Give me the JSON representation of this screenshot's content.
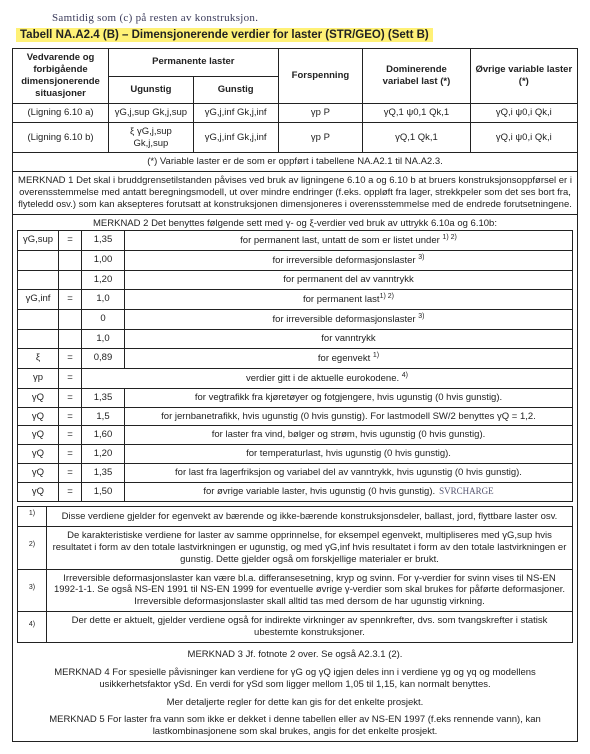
{
  "handwriting_top": "Samtidig som (c) på resten av konstruksjon.",
  "title": "Tabell NA.A2.4 (B) – Dimensjonerende verdier for laster (STR/GEO) (Sett B)",
  "header": {
    "col1": "Vedvarende og forbigående dimensjonerende situasjoner",
    "col2_top": "Permanente laster",
    "col2a": "Ugunstig",
    "col2b": "Gunstig",
    "col3": "Forspenning",
    "col4": "Dominerende variabel last (*)",
    "col5": "Øvrige variable laster (*)"
  },
  "rows": [
    {
      "c1": "(Ligning 6.10 a)",
      "c2a": "γG,j,sup Gk,j,sup",
      "c2b": "γG,j,inf Gk,j,inf",
      "c3": "γp P",
      "c4": "γQ,1 ψ0,1 Qk,1",
      "c5": "γQ,i ψ0,i Qk,i"
    },
    {
      "c1": "(Ligning 6.10 b)",
      "c2a": "ξ γG,j,sup Gk,j,sup",
      "c2b": "γG,j,inf Gk,j,inf",
      "c3": "γp P",
      "c4": "γQ,1 Qk,1",
      "c5": "γQ,i ψ0,i Qk,i"
    }
  ],
  "star_note": "(*) Variable laster er de som er oppført i tabellene NA.A2.1 til NA.A2.3.",
  "merknad1": "MERKNAD 1 Det skal i bruddgrensetilstanden påvises ved bruk av ligningene 6.10 a og 6.10 b at bruers konstruksjonsoppførsel er i overensstemmelse med antatt beregningsmodell, ut over mindre endringer (f.eks. oppløft fra lager, strekkpeler som det ses bort fra, flyteledd osv.) som kan aksepteres forutsatt at konstruksjonen dimensjoneres i overensstemmelse med de endrede forutsetningene.",
  "merknad2_intro": "MERKNAD 2  Det benyttes følgende sett med γ- og ξ-verdier ved bruk av uttrykk 6.10a og 6.10b:",
  "defs": [
    {
      "sym": "γG,sup",
      "val": "1,35",
      "txt": "for permanent last, untatt de som er listet under ",
      "sup": "1) 2)"
    },
    {
      "sym": "",
      "val": "1,00",
      "txt": "for irreversible deformasjonslaster ",
      "sup": "3)"
    },
    {
      "sym": "",
      "val": "1,20",
      "txt": "for permanent del av vanntrykk",
      "sup": ""
    },
    {
      "sym": "γG,inf",
      "val": "1,0",
      "txt": "for permanent last",
      "sup": "1) 2)"
    },
    {
      "sym": "",
      "val": "0",
      "txt": "for irreversible deformasjonslaster ",
      "sup": "3)"
    },
    {
      "sym": "",
      "val": "1,0",
      "txt": "for vanntrykk",
      "sup": ""
    },
    {
      "sym": "ξ",
      "val": "0,89",
      "txt": "for egenvekt ",
      "sup": "1)"
    },
    {
      "sym": "γp",
      "val": "verdier gitt i de aktuelle eurokodene. ",
      "txt": "",
      "sup": "4)"
    },
    {
      "sym": "γQ",
      "val": "1,35",
      "txt": "for vegtrafikk fra kjøretøyer og fotgjengere, hvis ugunstig (0 hvis gunstig).",
      "sup": ""
    },
    {
      "sym": "γQ",
      "val": "1,5",
      "txt": "for jernbanetrafikk, hvis ugunstig (0 hvis gunstig). For lastmodell SW/2 benyttes γQ = 1,2.",
      "sup": ""
    },
    {
      "sym": "γQ",
      "val": "1,60",
      "txt": "for laster fra vind, bølger og strøm, hvis ugunstig (0 hvis gunstig).",
      "sup": ""
    },
    {
      "sym": "γQ",
      "val": "1,20",
      "txt": "for temperaturlast, hvis ugunstig (0 hvis gunstig).",
      "sup": ""
    },
    {
      "sym": "γQ",
      "val": "1,35",
      "txt": "for last fra lagerfriksjon og variabel del av vanntrykk, hvis ugunstig (0 hvis gunstig).",
      "sup": ""
    },
    {
      "sym": "γQ",
      "val": "1,50",
      "txt": "for øvrige variable laster, hvis ugunstig (0 hvis gunstig).",
      "sup": "",
      "hand": "SVRCHARGE"
    }
  ],
  "footnotes": [
    {
      "n": "1)",
      "txt": "Disse verdiene gjelder for egenvekt av bærende og ikke-bærende konstruksjonsdeler, ballast, jord, flyttbare laster osv."
    },
    {
      "n": "2)",
      "txt": "De karakteristiske verdiene for laster av samme opprinnelse, for eksempel egenvekt, multipliseres med γG,sup hvis resultatet i form av den totale lastvirkningen er ugunstig, og med γG,inf hvis resultatet i form av den totale lastvirkningen er gunstig. Dette gjelder også om forskjellige materialer er brukt."
    },
    {
      "n": "3)",
      "txt": "Irreversible deformasjonslaster kan være bl.a. differansesetning, kryp og svinn. For γ-verdier for svinn vises til NS-EN 1992-1-1. Se også NS-EN 1991 til NS-EN 1999 for eventuelle øvrige γ-verdier som skal brukes for påførte deformasjoner. Irreversible deformasjonslaster skall alltid tas med dersom de har ugunstig virkning."
    },
    {
      "n": "4)",
      "txt": "Der dette er aktuelt, gjelder verdiene også for indirekte virkninger av spennkrefter, dvs. som tvangskrefter i statisk ubestemte konstruksjoner."
    }
  ],
  "merknad3": "MERKNAD 3  Jf. fotnote 2 over. Se også A2.3.1 (2).",
  "merknad4": "MERKNAD 4  For spesielle påvisninger kan verdiene for γG og γQ igjen deles inn i verdiene γg og γq og modellens usikkerhetsfaktor γSd. En verdi for γSd som ligger mellom 1,05 til 1,15, kan normalt benyttes.",
  "merknad4b": "Mer detaljerte regler for dette kan gis for det enkelte prosjekt.",
  "merknad5": "MERKNAD 5  For laster fra vann som ikke er dekket i denne tabellen eller av NS-EN 1997 (f.eks rennende vann), kan lastkombinasjonene som skal brukes, angis for det enkelte prosjekt."
}
